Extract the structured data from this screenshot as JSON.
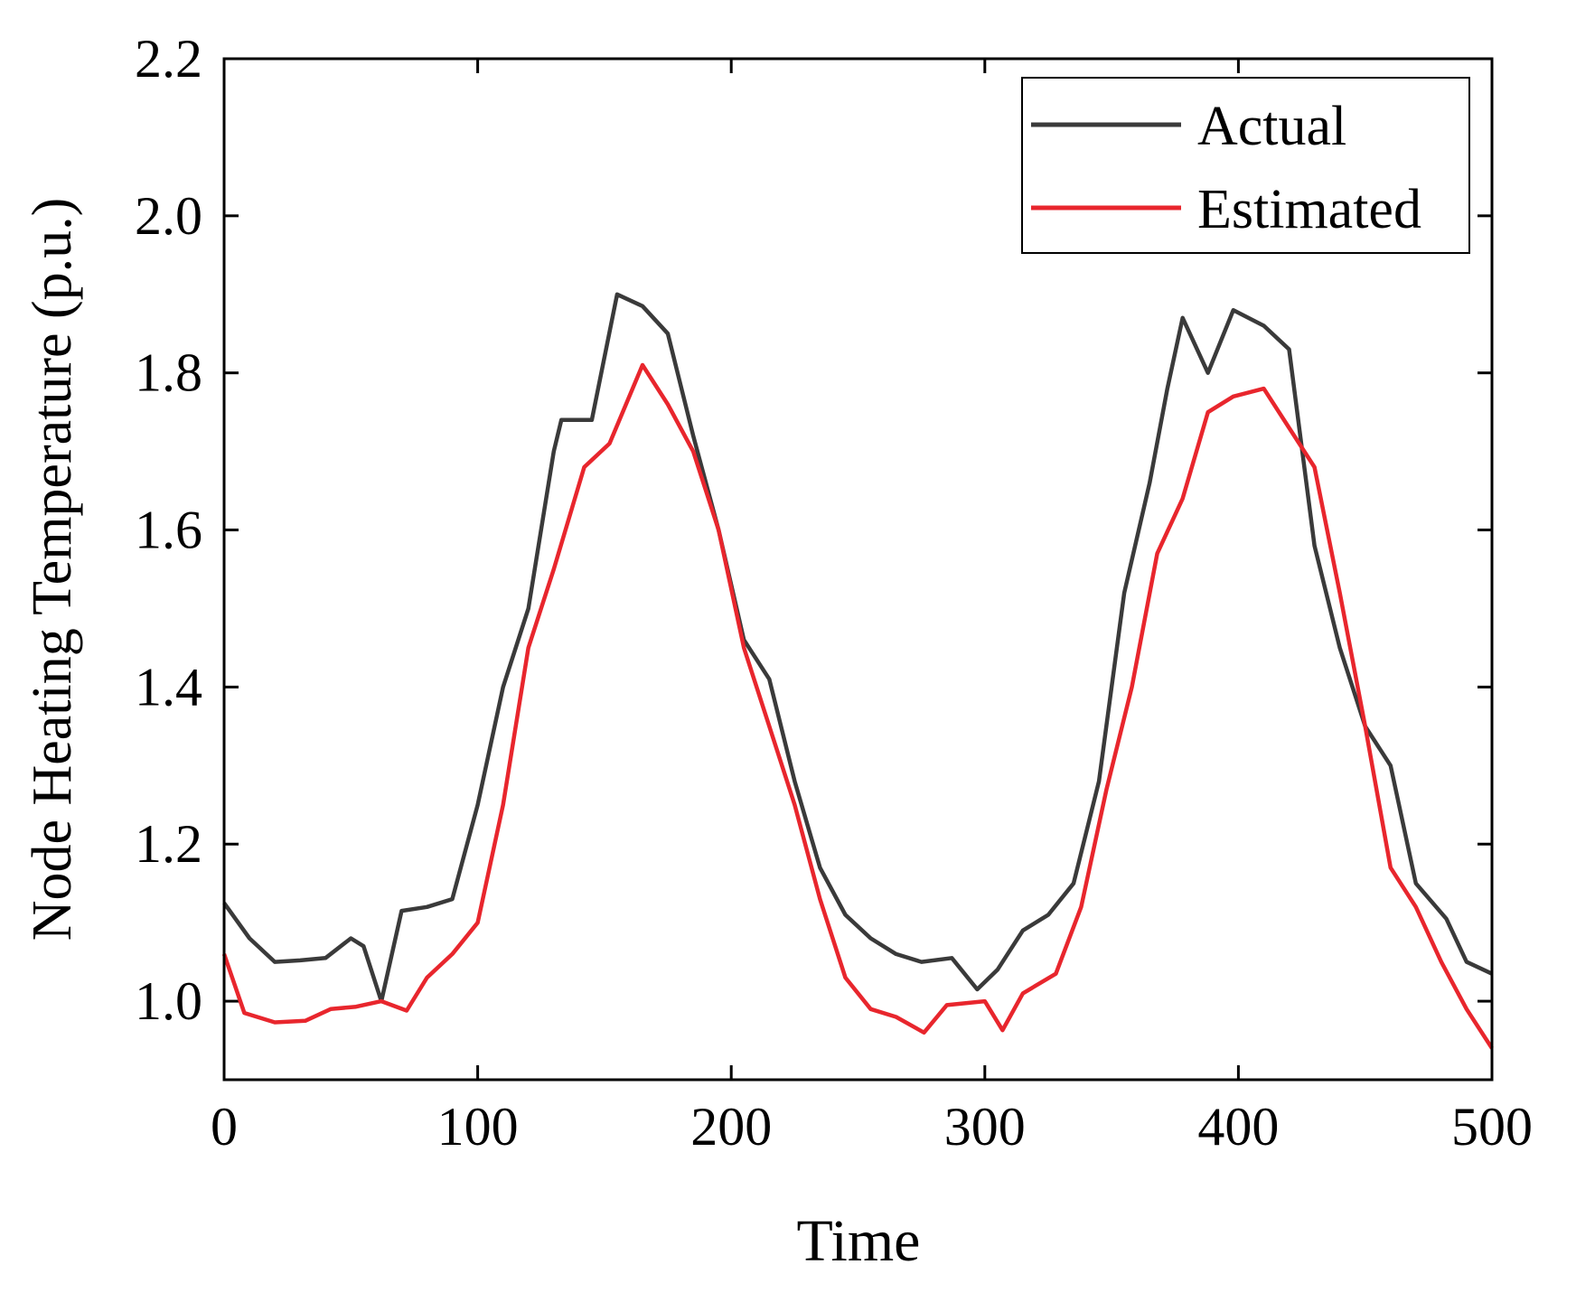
{
  "chart_data": {
    "type": "line",
    "xlabel": "Time",
    "ylabel": "Node Heating Temperature (p.u.)",
    "xlim": [
      0,
      500
    ],
    "xticks": [
      0,
      100,
      200,
      300,
      400,
      500
    ],
    "ylim": [
      0.9,
      2.2
    ],
    "yticks": [
      {
        "value": 1,
        "label": "1.0"
      },
      1.2,
      1.4,
      1.6,
      1.8,
      {
        "value": 2,
        "label": "2.0"
      },
      2.2
    ],
    "legend": "upper right",
    "series": [
      {
        "name": "Actual",
        "color": "#3a3a3a",
        "x": [
          0,
          10,
          20,
          30,
          40,
          50,
          55,
          62,
          70,
          80,
          90,
          100,
          110,
          120,
          130,
          133,
          145,
          155,
          165,
          175,
          185,
          195,
          205,
          215,
          225,
          235,
          245,
          255,
          265,
          275,
          287,
          297,
          305,
          315,
          325,
          335,
          345,
          355,
          365,
          372,
          378,
          388,
          398,
          410,
          420,
          430,
          440,
          450,
          460,
          470,
          482,
          490,
          500
        ],
        "values": [
          1.125,
          1.08,
          1.05,
          1.052,
          1.055,
          1.08,
          1.07,
          1.0,
          1.115,
          1.12,
          1.13,
          1.25,
          1.4,
          1.5,
          1.7,
          1.74,
          1.74,
          1.9,
          1.885,
          1.85,
          1.72,
          1.6,
          1.46,
          1.41,
          1.28,
          1.17,
          1.11,
          1.08,
          1.06,
          1.05,
          1.055,
          1.015,
          1.04,
          1.09,
          1.11,
          1.15,
          1.28,
          1.52,
          1.66,
          1.78,
          1.87,
          1.8,
          1.88,
          1.86,
          1.83,
          1.58,
          1.45,
          1.35,
          1.3,
          1.15,
          1.105,
          1.05,
          1.035
        ]
      },
      {
        "name": "Estimated",
        "color": "#e8262d",
        "x": [
          0,
          8,
          20,
          32,
          42,
          52,
          62,
          72,
          80,
          90,
          100,
          110,
          120,
          130,
          142,
          152,
          165,
          175,
          185,
          195,
          205,
          215,
          225,
          235,
          245,
          255,
          265,
          276,
          285,
          300,
          307,
          315,
          328,
          338,
          348,
          358,
          368,
          378,
          388,
          398,
          410,
          420,
          430,
          440,
          450,
          460,
          470,
          480,
          490,
          500
        ],
        "values": [
          1.06,
          0.985,
          0.973,
          0.975,
          0.99,
          0.993,
          1.0,
          0.988,
          1.03,
          1.06,
          1.1,
          1.25,
          1.45,
          1.55,
          1.68,
          1.71,
          1.81,
          1.76,
          1.7,
          1.6,
          1.45,
          1.35,
          1.25,
          1.13,
          1.03,
          0.99,
          0.98,
          0.96,
          0.995,
          1.0,
          0.963,
          1.01,
          1.035,
          1.12,
          1.27,
          1.4,
          1.57,
          1.64,
          1.75,
          1.77,
          1.78,
          1.73,
          1.68,
          1.52,
          1.35,
          1.17,
          1.12,
          1.05,
          0.99,
          0.94
        ]
      }
    ]
  }
}
